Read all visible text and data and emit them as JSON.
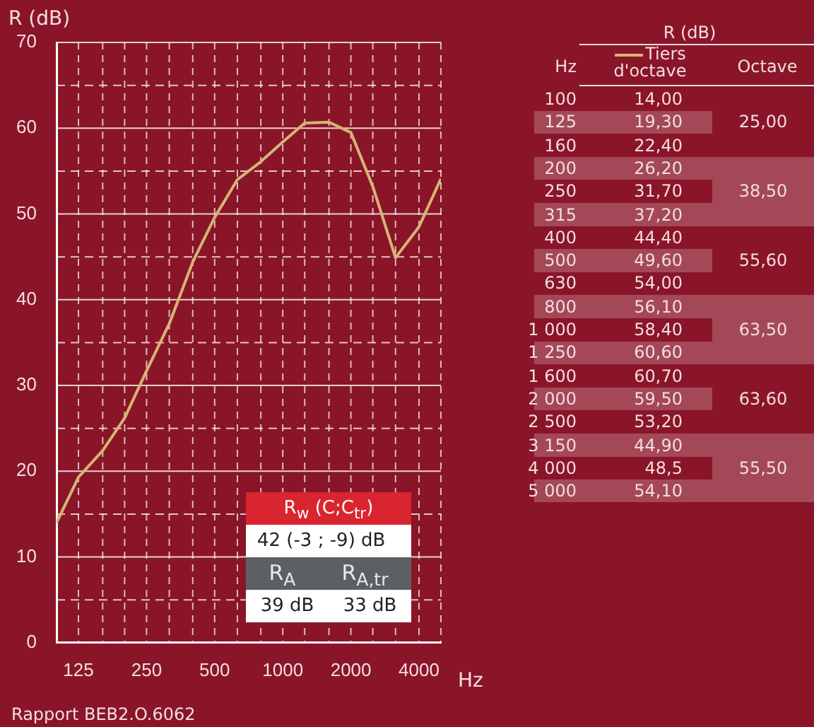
{
  "chart_data": [
    {
      "type": "line",
      "ylabel": "R (dB)",
      "xlabel": "Hz",
      "log": "x",
      "x": [
        100,
        125,
        160,
        200,
        250,
        315,
        400,
        500,
        630,
        800,
        1000,
        1250,
        1600,
        2000,
        2500,
        3150,
        4000,
        5000
      ],
      "xlim": [
        100,
        5000
      ],
      "xticks": [
        {
          "value": 100,
          "label": null
        },
        {
          "value": 125,
          "label": "125"
        },
        {
          "value": 160,
          "label": null
        },
        {
          "value": 200,
          "label": null
        },
        {
          "value": 250,
          "label": "250"
        },
        {
          "value": 315,
          "label": null
        },
        {
          "value": 400,
          "label": null
        },
        {
          "value": 500,
          "label": "500"
        },
        {
          "value": 630,
          "label": null
        },
        {
          "value": 800,
          "label": null
        },
        {
          "value": 1000,
          "label": "1000"
        },
        {
          "value": 1250,
          "label": null
        },
        {
          "value": 1600,
          "label": null
        },
        {
          "value": 2000,
          "label": "2000"
        },
        {
          "value": 2500,
          "label": null
        },
        {
          "value": 3150,
          "label": null
        },
        {
          "value": 4000,
          "label": "4000"
        },
        {
          "value": 5000,
          "label": null
        }
      ],
      "ylim": [
        0,
        70
      ],
      "yticks": [
        0,
        {
          "value": 5,
          "label": null
        },
        10,
        {
          "value": 15,
          "label": null
        },
        20,
        {
          "value": 25,
          "label": null
        },
        30,
        {
          "value": 35,
          "label": null
        },
        40,
        {
          "value": 45,
          "label": null
        },
        50,
        {
          "value": 55,
          "label": null
        },
        60,
        {
          "value": 65,
          "label": null
        },
        70
      ],
      "grid": true,
      "legend": false,
      "marker": "none",
      "line_style": "solid",
      "series": [
        {
          "color": "#d6b474",
          "values": [
            14,
            19.3,
            22.4,
            26.2,
            31.7,
            37.2,
            44.4,
            49.6,
            54,
            56.1,
            58.4,
            60.6,
            60.7,
            59.5,
            53.2,
            44.9,
            48.5,
            54.1
          ]
        }
      ],
      "annotations": [
        "R$_{w}$ (C;C$_{tr}$)",
        "42 (-3 ; -9) dB",
        "R$_{A}$",
        "R$_{A,tr}$",
        "39 dB",
        "33 dB",
        "Rapport BEB2.O.6062"
      ]
    },
    {
      "type": "heatmap",
      "title": "R (dB)",
      "ylabel": "Hz",
      "categories": [
        "Tiers d'octave",
        "Octave"
      ],
      "y_categories": [
        "100",
        "125",
        "160",
        "200",
        "250",
        "315",
        "400",
        "500",
        "630",
        "800",
        "1 000",
        "1 250",
        "1 600",
        "2 000",
        "2 500",
        "3 150",
        "4 000",
        "5 000"
      ],
      "cells": [
        [
          14,
          null
        ],
        [
          19.3,
          25
        ],
        [
          22.4,
          null
        ],
        [
          26.2,
          null
        ],
        [
          31.7,
          38.5
        ],
        [
          37.2,
          null
        ],
        [
          44.4,
          null
        ],
        [
          49.6,
          55.6
        ],
        [
          54,
          null
        ],
        [
          56.1,
          null
        ],
        [
          58.4,
          63.5
        ],
        [
          60.6,
          null
        ],
        [
          60.7,
          null
        ],
        [
          59.5,
          63.6
        ],
        [
          53.2,
          null
        ],
        [
          44.9,
          null
        ],
        [
          48.5,
          55.5
        ],
        [
          54.1,
          null
        ]
      ],
      "cell_labels": [
        [
          "14,00",
          null
        ],
        [
          "19,30",
          "25,00"
        ],
        [
          "22,40",
          null
        ],
        [
          "26,20",
          null
        ],
        [
          "31,70",
          "38,50"
        ],
        [
          "37,20",
          null
        ],
        [
          "44,40",
          null
        ],
        [
          "49,60",
          "55,60"
        ],
        [
          "54,00",
          null
        ],
        [
          "56,10",
          null
        ],
        [
          "58,40",
          "63,50"
        ],
        [
          "60,60",
          null
        ],
        [
          "60,70",
          null
        ],
        [
          "59,50",
          "63,60"
        ],
        [
          "53,20",
          null
        ],
        [
          "44,90",
          null
        ],
        [
          "48,5",
          "55,50"
        ],
        [
          "54,10",
          null
        ]
      ]
    }
  ]
}
